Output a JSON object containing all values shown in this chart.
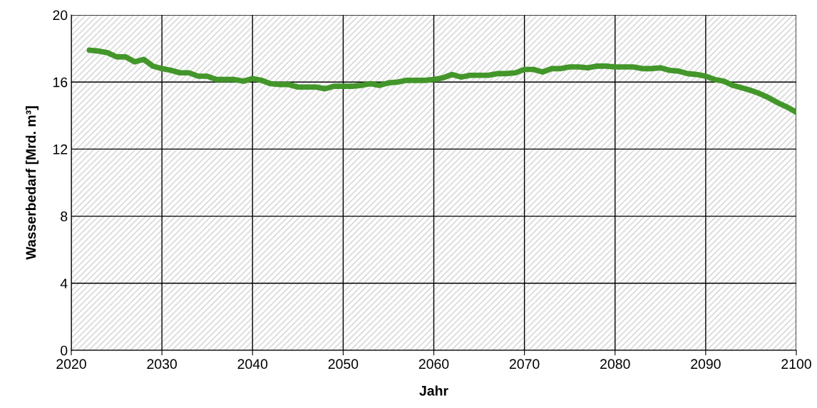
{
  "chart_data": {
    "type": "line",
    "xlabel": "Jahr",
    "ylabel": "Wasserbedarf [Mrd. m³]",
    "x": [
      2022,
      2023,
      2024,
      2025,
      2026,
      2027,
      2028,
      2029,
      2030,
      2031,
      2032,
      2033,
      2034,
      2035,
      2036,
      2037,
      2038,
      2039,
      2040,
      2041,
      2042,
      2043,
      2044,
      2045,
      2046,
      2047,
      2048,
      2049,
      2050,
      2051,
      2052,
      2053,
      2054,
      2055,
      2056,
      2057,
      2058,
      2059,
      2060,
      2061,
      2062,
      2063,
      2064,
      2065,
      2066,
      2067,
      2068,
      2069,
      2070,
      2071,
      2072,
      2073,
      2074,
      2075,
      2076,
      2077,
      2078,
      2079,
      2080,
      2081,
      2082,
      2083,
      2084,
      2085,
      2086,
      2087,
      2088,
      2089,
      2090,
      2091,
      2092,
      2093,
      2094,
      2095,
      2096,
      2097,
      2098,
      2099,
      2100
    ],
    "series": [
      {
        "color": "#43962a",
        "values": [
          17.9,
          17.85,
          17.75,
          17.5,
          17.5,
          17.2,
          17.35,
          16.95,
          16.8,
          16.7,
          16.55,
          16.55,
          16.35,
          16.35,
          16.15,
          16.15,
          16.15,
          16.05,
          16.2,
          16.1,
          15.9,
          15.85,
          15.85,
          15.7,
          15.7,
          15.7,
          15.6,
          15.75,
          15.75,
          15.75,
          15.8,
          15.9,
          15.8,
          15.95,
          16.0,
          16.1,
          16.1,
          16.1,
          16.15,
          16.25,
          16.45,
          16.3,
          16.4,
          16.4,
          16.4,
          16.5,
          16.5,
          16.55,
          16.75,
          16.75,
          16.6,
          16.8,
          16.8,
          16.9,
          16.9,
          16.85,
          16.95,
          16.95,
          16.9,
          16.9,
          16.9,
          16.8,
          16.8,
          16.85,
          16.7,
          16.65,
          16.5,
          16.45,
          16.35,
          16.15,
          16.05,
          15.8,
          15.65,
          15.5,
          15.3,
          15.05,
          14.75,
          14.5,
          14.2
        ]
      }
    ],
    "xlim": [
      2020,
      2100
    ],
    "xticks": [
      2020,
      2030,
      2040,
      2050,
      2060,
      2070,
      2080,
      2090,
      2100
    ],
    "ylim": [
      0,
      20
    ],
    "yticks": [
      0,
      4,
      8,
      12,
      16,
      20
    ],
    "grid": true,
    "marker": "none",
    "line_style": "solid"
  }
}
